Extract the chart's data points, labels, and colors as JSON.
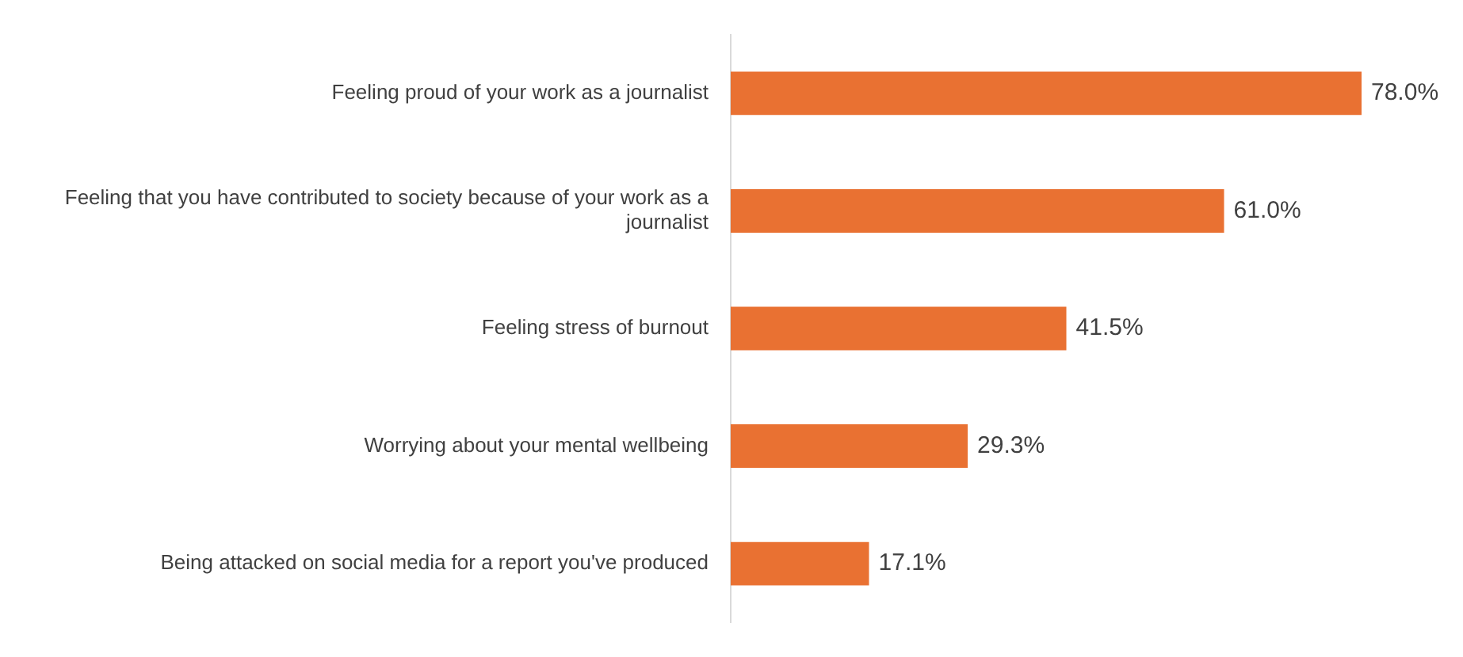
{
  "chart_data": {
    "type": "bar",
    "orientation": "horizontal",
    "categories": [
      "Feeling proud of your work as a journalist",
      "Feeling that you have contributed to society because of your work as a journalist",
      "Feeling stress of burnout",
      "Worrying about your mental wellbeing",
      "Being attacked on social media for a report you've produced"
    ],
    "values": [
      78.0,
      61.0,
      41.5,
      29.3,
      17.1
    ],
    "value_labels": [
      "78.0%",
      "61.0%",
      "41.5%",
      "29.3%",
      "17.1%"
    ],
    "color": "#e97132",
    "grid": false,
    "legend": false,
    "tick_labels": "y"
  }
}
